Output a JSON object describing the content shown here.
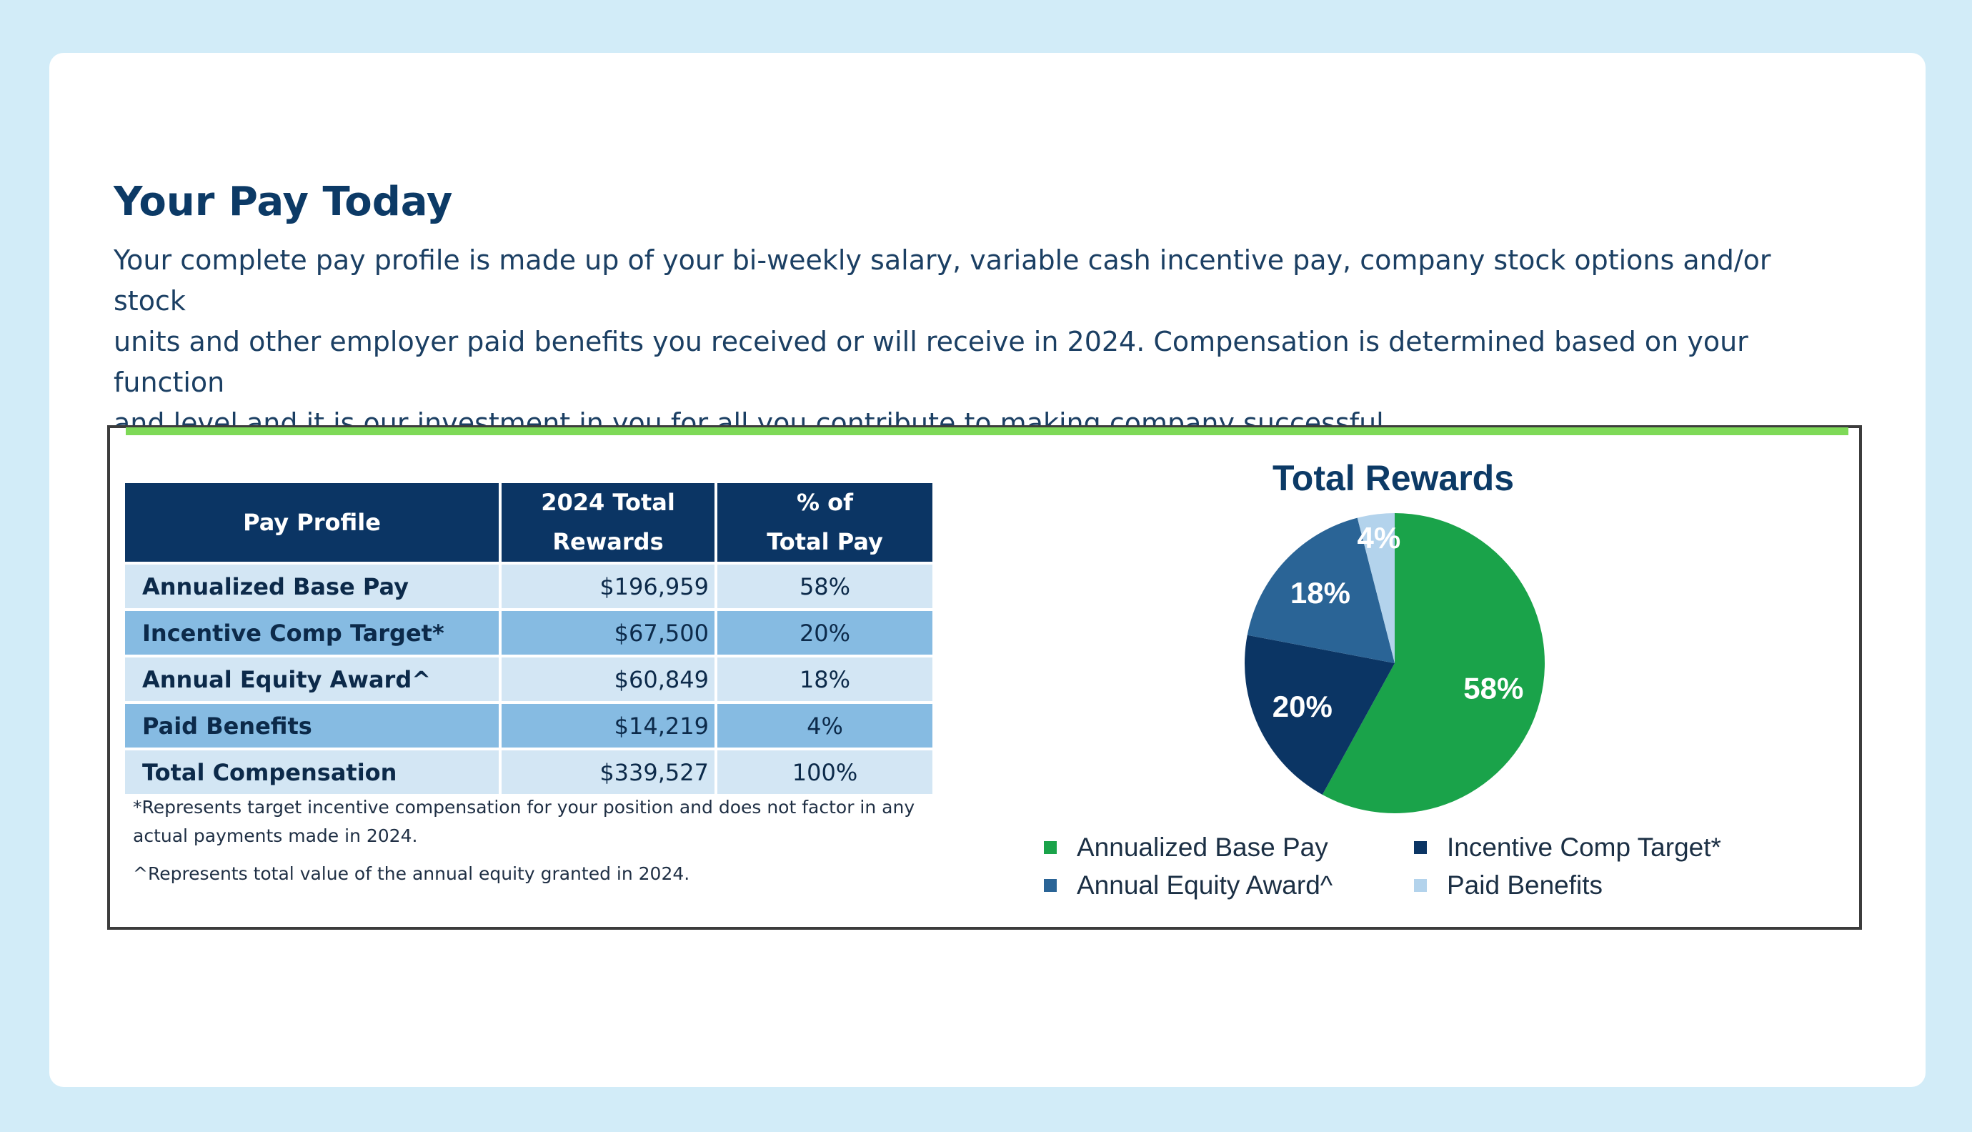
{
  "header": {
    "title": "Your Pay Today",
    "intro_lines": [
      "Your complete pay profile is made up of your bi-weekly salary, variable cash incentive pay, company stock options and/or stock",
      "units and other employer paid benefits you received or will receive in 2024.  Compensation is determined based on your function",
      "and level and it is our investment in you for all you contribute to making company successful."
    ]
  },
  "table": {
    "headers": {
      "col1": "Pay Profile",
      "col2_line1": "2024 Total",
      "col2_line2": "Rewards",
      "col3_line1": "% of",
      "col3_line2": "Total Pay"
    },
    "rows": [
      {
        "label": "Annualized Base Pay",
        "amount": "$196,959",
        "pct": "58%"
      },
      {
        "label": "Incentive Comp Target*",
        "amount": "$67,500",
        "pct": "20%"
      },
      {
        "label": "Annual Equity Award^",
        "amount": "$60,849",
        "pct": "18%"
      },
      {
        "label": "Paid Benefits",
        "amount": "$14,219",
        "pct": "4%"
      },
      {
        "label": "Total Compensation",
        "amount": "$339,527",
        "pct": "100%"
      }
    ],
    "footnotes": {
      "note1_line1": "*Represents target incentive compensation for your position and does not factor in any",
      "note1_line2": "actual payments made in 2024.",
      "note2": "^Represents total value of the annual equity granted in 2024."
    }
  },
  "chart_data": {
    "type": "pie",
    "title": "Total Rewards",
    "categories": [
      "Annualized Base Pay",
      "Incentive Comp Target*",
      "Annual Equity Award^",
      "Paid Benefits"
    ],
    "values": [
      58,
      20,
      18,
      4
    ],
    "labels": [
      "58%",
      "20%",
      "18%",
      "4%"
    ],
    "colors": [
      "#1aa34a",
      "#0b3564",
      "#2a6496",
      "#b3d3ec"
    ],
    "legend_position": "bottom",
    "legend_entries": [
      "Annualized Base Pay",
      "Incentive Comp Target*",
      "Annual Equity Award^",
      "Paid Benefits"
    ]
  },
  "colors": {
    "page_bg": "#d2ecf8",
    "title_navy": "#0c3a66",
    "header_navy": "#0b3564",
    "row_light": "#d3e6f4",
    "row_mid": "#86bbe2",
    "accent_green_rule": "#7ed957"
  }
}
